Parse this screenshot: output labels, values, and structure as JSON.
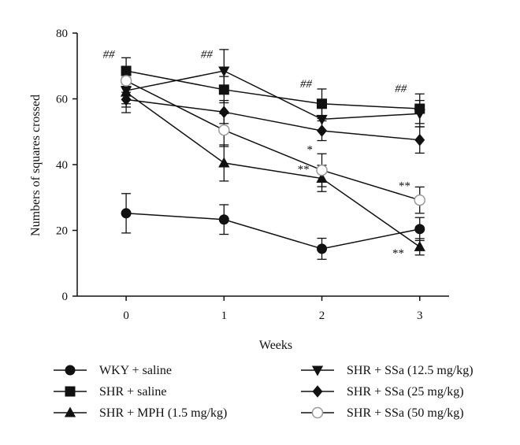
{
  "chart_data": {
    "type": "line",
    "title": "",
    "xlabel": "Weeks",
    "ylabel": "Numbers of squares crossed",
    "x": [
      0,
      1,
      2,
      3
    ],
    "x_ticks": [
      "0",
      "1",
      "2",
      "3"
    ],
    "xlim": [
      -0.5,
      3.3
    ],
    "ylim": [
      0,
      80
    ],
    "y_ticks": [
      0,
      20,
      40,
      60,
      80
    ],
    "grid": false,
    "legend_position": "bottom",
    "series": [
      {
        "name": "WKY + saline",
        "marker": "filled-circle",
        "values": [
          25.2,
          23.3,
          14.4,
          20.4
        ],
        "errors": [
          6.0,
          4.5,
          3.2,
          3.5
        ]
      },
      {
        "name": "SHR + saline",
        "marker": "filled-square",
        "values": [
          68.5,
          62.8,
          58.5,
          57.0
        ],
        "errors": [
          4.0,
          4.0,
          4.5,
          4.5
        ]
      },
      {
        "name": "SHR + MPH (1.5 mg/kg)",
        "marker": "filled-triangle-up",
        "values": [
          62.0,
          40.5,
          35.8,
          15.0
        ],
        "errors": [
          4.5,
          5.5,
          4.0,
          2.5
        ]
      },
      {
        "name": "SHR + SSa (12.5 mg/kg)",
        "marker": "filled-triangle-down",
        "values": [
          62.5,
          68.5,
          53.8,
          55.5
        ],
        "errors": [
          4.0,
          6.5,
          3.5,
          4.0
        ]
      },
      {
        "name": "SHR + SSa (25 mg/kg)",
        "marker": "filled-diamond",
        "values": [
          59.8,
          56.0,
          50.3,
          47.5
        ],
        "errors": [
          4.0,
          3.5,
          3.0,
          4.0
        ]
      },
      {
        "name": "SHR + SSa (50 mg/kg)",
        "marker": "open-circle",
        "values": [
          65.5,
          50.5,
          38.3,
          29.2
        ],
        "errors": [
          3.5,
          5.0,
          5.0,
          4.0
        ]
      }
    ],
    "annotations": [
      {
        "text": "##",
        "x": 0,
        "y": 72.5
      },
      {
        "text": "##",
        "x": 1,
        "y": 72.5
      },
      {
        "text": "##",
        "x": 2,
        "y": 63.5
      },
      {
        "text": "##",
        "x": 3,
        "y": 62.0
      },
      {
        "text": "*",
        "x": 2,
        "y": 43.5
      },
      {
        "text": "**",
        "x": 2,
        "y": 37.5
      },
      {
        "text": "**",
        "x": 3,
        "y": 32.5
      },
      {
        "text": "**",
        "x": 3,
        "y": 12.0
      }
    ]
  }
}
